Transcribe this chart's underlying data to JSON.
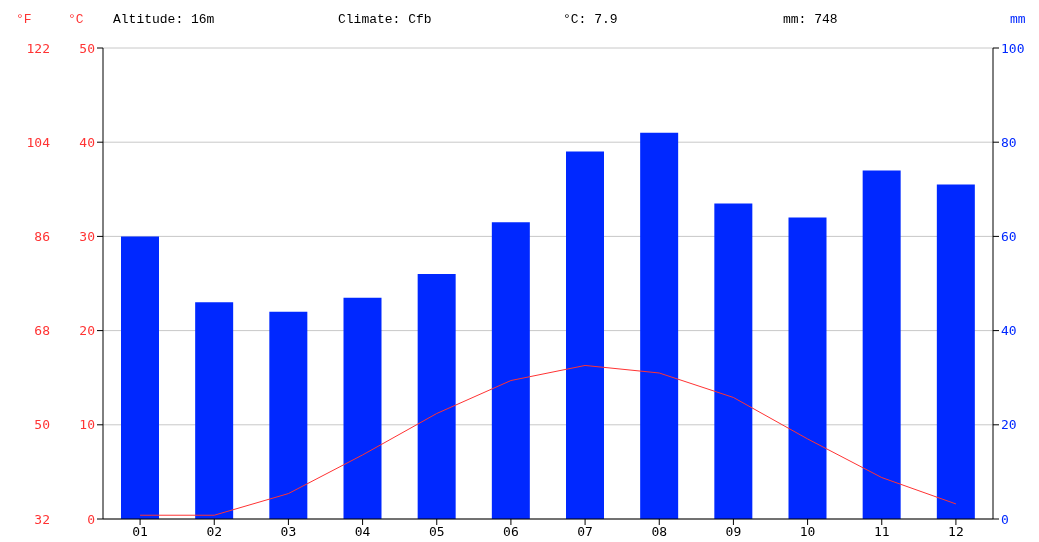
{
  "chart_data": {
    "type": "bar",
    "annotations": [
      "Altitude: 16m",
      "Climate: Cfb",
      "°C: 7.9",
      "mm: 748"
    ],
    "ylabel": "°C",
    "y2label": "mm",
    "y3label": "°F",
    "categories": [
      "01",
      "02",
      "03",
      "04",
      "05",
      "06",
      "07",
      "08",
      "09",
      "10",
      "11",
      "12"
    ],
    "series": [
      {
        "axis": "y2",
        "color": "#0028ff",
        "values": [
          60,
          46,
          44,
          47,
          52,
          63,
          78,
          82,
          67,
          64,
          74,
          71
        ]
      },
      {
        "type": "line",
        "axis": "y",
        "color": "#ff3333",
        "values": [
          0.4,
          0.4,
          2.7,
          6.8,
          11.2,
          14.7,
          16.3,
          15.5,
          12.9,
          8.5,
          4.4,
          1.6
        ]
      }
    ],
    "ylim": [
      0,
      50
    ],
    "yticks": [
      0,
      10,
      20,
      30,
      40,
      50
    ],
    "y2lim": [
      0,
      100
    ],
    "y2ticks": [
      0,
      20,
      40,
      60,
      80,
      100
    ],
    "y3lim": [
      32,
      122
    ],
    "y3ticks": [
      32,
      50,
      68,
      86,
      104,
      122
    ],
    "grid": "y",
    "marker": "none",
    "line_style": "solid"
  }
}
